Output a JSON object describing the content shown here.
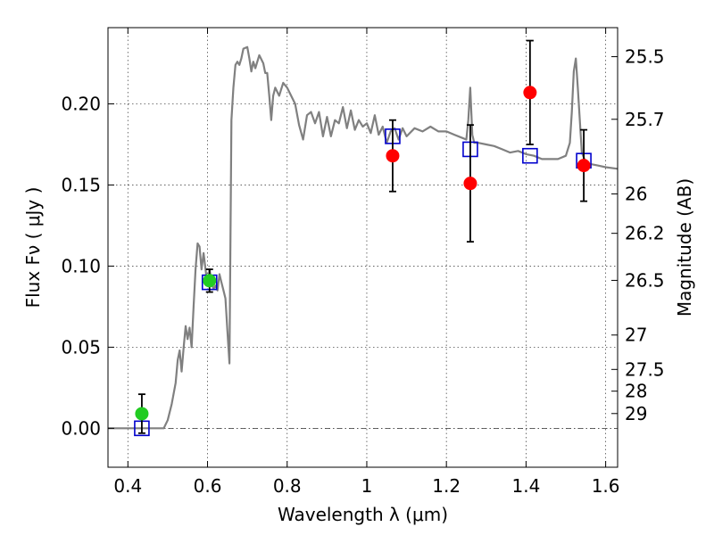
{
  "chart_data": {
    "type": "line",
    "title": "",
    "xlabel": "Wavelength  λ (μm)",
    "ylabel": "Flux  Fν  ( μJy )",
    "y2label": "Magnitude (AB)",
    "xlim": [
      0.35,
      1.63
    ],
    "ylim": [
      -0.024,
      0.247
    ],
    "grid": true,
    "x_ticks": [
      0.4,
      0.6,
      0.8,
      1.0,
      1.2,
      1.4,
      1.6
    ],
    "x_tick_labels": [
      "0.4",
      "0.6",
      "0.8",
      "1",
      "1.2",
      "1.4",
      "1.6"
    ],
    "y_ticks": [
      0.0,
      0.05,
      0.1,
      0.15,
      0.2
    ],
    "y_tick_labels": [
      "0.00",
      "0.05",
      "0.10",
      "0.15",
      "0.20"
    ],
    "y2_ticks": [
      {
        "flux": 0.2291,
        "label": "25.5"
      },
      {
        "flux": 0.1905,
        "label": "25.7"
      },
      {
        "flux": 0.1445,
        "label": "26"
      },
      {
        "flux": 0.1202,
        "label": "26.2"
      },
      {
        "flux": 0.0912,
        "label": "26.5"
      },
      {
        "flux": 0.0575,
        "label": "27"
      },
      {
        "flux": 0.0363,
        "label": "27.5"
      },
      {
        "flux": 0.0229,
        "label": "28"
      },
      {
        "flux": 0.0091,
        "label": "29"
      }
    ],
    "series": [
      {
        "style": "line",
        "color": "#808080",
        "x": [
          0.35,
          0.49,
          0.5,
          0.51,
          0.52,
          0.525,
          0.53,
          0.535,
          0.54,
          0.545,
          0.55,
          0.555,
          0.56,
          0.565,
          0.57,
          0.575,
          0.58,
          0.585,
          0.59,
          0.6,
          0.605,
          0.61,
          0.615,
          0.62,
          0.625,
          0.63,
          0.635,
          0.64,
          0.645,
          0.65,
          0.655,
          0.66,
          0.665,
          0.67,
          0.675,
          0.68,
          0.685,
          0.69,
          0.7,
          0.705,
          0.71,
          0.715,
          0.72,
          0.73,
          0.74,
          0.745,
          0.75,
          0.755,
          0.76,
          0.765,
          0.77,
          0.78,
          0.79,
          0.8,
          0.81,
          0.82,
          0.83,
          0.84,
          0.85,
          0.86,
          0.87,
          0.88,
          0.89,
          0.9,
          0.91,
          0.92,
          0.93,
          0.94,
          0.95,
          0.96,
          0.97,
          0.98,
          0.99,
          1.0,
          1.01,
          1.02,
          1.03,
          1.04,
          1.05,
          1.06,
          1.07,
          1.08,
          1.09,
          1.1,
          1.12,
          1.14,
          1.16,
          1.18,
          1.2,
          1.22,
          1.24,
          1.25,
          1.255,
          1.26,
          1.265,
          1.27,
          1.28,
          1.3,
          1.32,
          1.34,
          1.36,
          1.38,
          1.4,
          1.42,
          1.44,
          1.46,
          1.48,
          1.5,
          1.51,
          1.515,
          1.52,
          1.525,
          1.53,
          1.54,
          1.55,
          1.56,
          1.58,
          1.6,
          1.63
        ],
        "y": [
          0.0,
          0.0,
          0.005,
          0.015,
          0.028,
          0.042,
          0.048,
          0.035,
          0.05,
          0.063,
          0.055,
          0.062,
          0.05,
          0.075,
          0.098,
          0.114,
          0.112,
          0.098,
          0.108,
          0.088,
          0.098,
          0.09,
          0.086,
          0.088,
          0.085,
          0.095,
          0.09,
          0.085,
          0.08,
          0.06,
          0.04,
          0.19,
          0.21,
          0.224,
          0.226,
          0.224,
          0.228,
          0.234,
          0.235,
          0.228,
          0.22,
          0.226,
          0.222,
          0.23,
          0.225,
          0.219,
          0.219,
          0.205,
          0.19,
          0.205,
          0.21,
          0.205,
          0.213,
          0.21,
          0.205,
          0.2,
          0.187,
          0.178,
          0.193,
          0.195,
          0.188,
          0.195,
          0.18,
          0.192,
          0.18,
          0.19,
          0.188,
          0.198,
          0.185,
          0.196,
          0.184,
          0.19,
          0.186,
          0.188,
          0.182,
          0.193,
          0.181,
          0.186,
          0.176,
          0.183,
          0.185,
          0.178,
          0.185,
          0.18,
          0.185,
          0.183,
          0.186,
          0.183,
          0.183,
          0.181,
          0.179,
          0.178,
          0.19,
          0.21,
          0.181,
          0.176,
          0.176,
          0.175,
          0.174,
          0.172,
          0.17,
          0.171,
          0.169,
          0.168,
          0.166,
          0.166,
          0.166,
          0.168,
          0.176,
          0.195,
          0.22,
          0.228,
          0.21,
          0.17,
          0.164,
          0.163,
          0.162,
          0.161,
          0.16
        ]
      },
      {
        "style": "markers",
        "marker": "square",
        "color": "#0000cc",
        "x": [
          0.435,
          0.605,
          1.065,
          1.26,
          1.41,
          1.545
        ],
        "y": [
          0.0,
          0.09,
          0.18,
          0.172,
          0.168,
          0.165
        ]
      },
      {
        "style": "markers",
        "marker": "circle",
        "color": "#22cc22",
        "x": [
          0.435,
          0.605
        ],
        "y": [
          0.009,
          0.091
        ],
        "yerr": [
          0.012,
          0.007
        ]
      },
      {
        "style": "markers",
        "marker": "circle",
        "color": "#ff0000",
        "x": [
          1.065,
          1.26,
          1.41,
          1.545
        ],
        "y": [
          0.168,
          0.151,
          0.207,
          0.162
        ],
        "yerr": [
          0.022,
          0.036,
          0.032,
          0.022
        ]
      }
    ]
  }
}
